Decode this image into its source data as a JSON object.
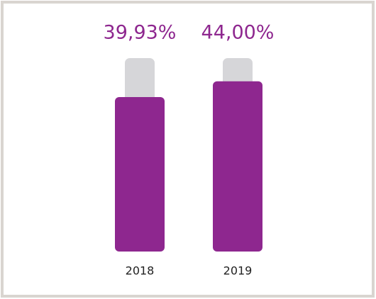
{
  "chart_data": {
    "type": "bar",
    "categories": [
      "2018",
      "2019"
    ],
    "values": [
      39.93,
      44.0
    ],
    "value_labels": [
      "39,93%",
      "44,00%"
    ],
    "color": "#8e278f",
    "ylim": [
      0,
      50
    ]
  }
}
